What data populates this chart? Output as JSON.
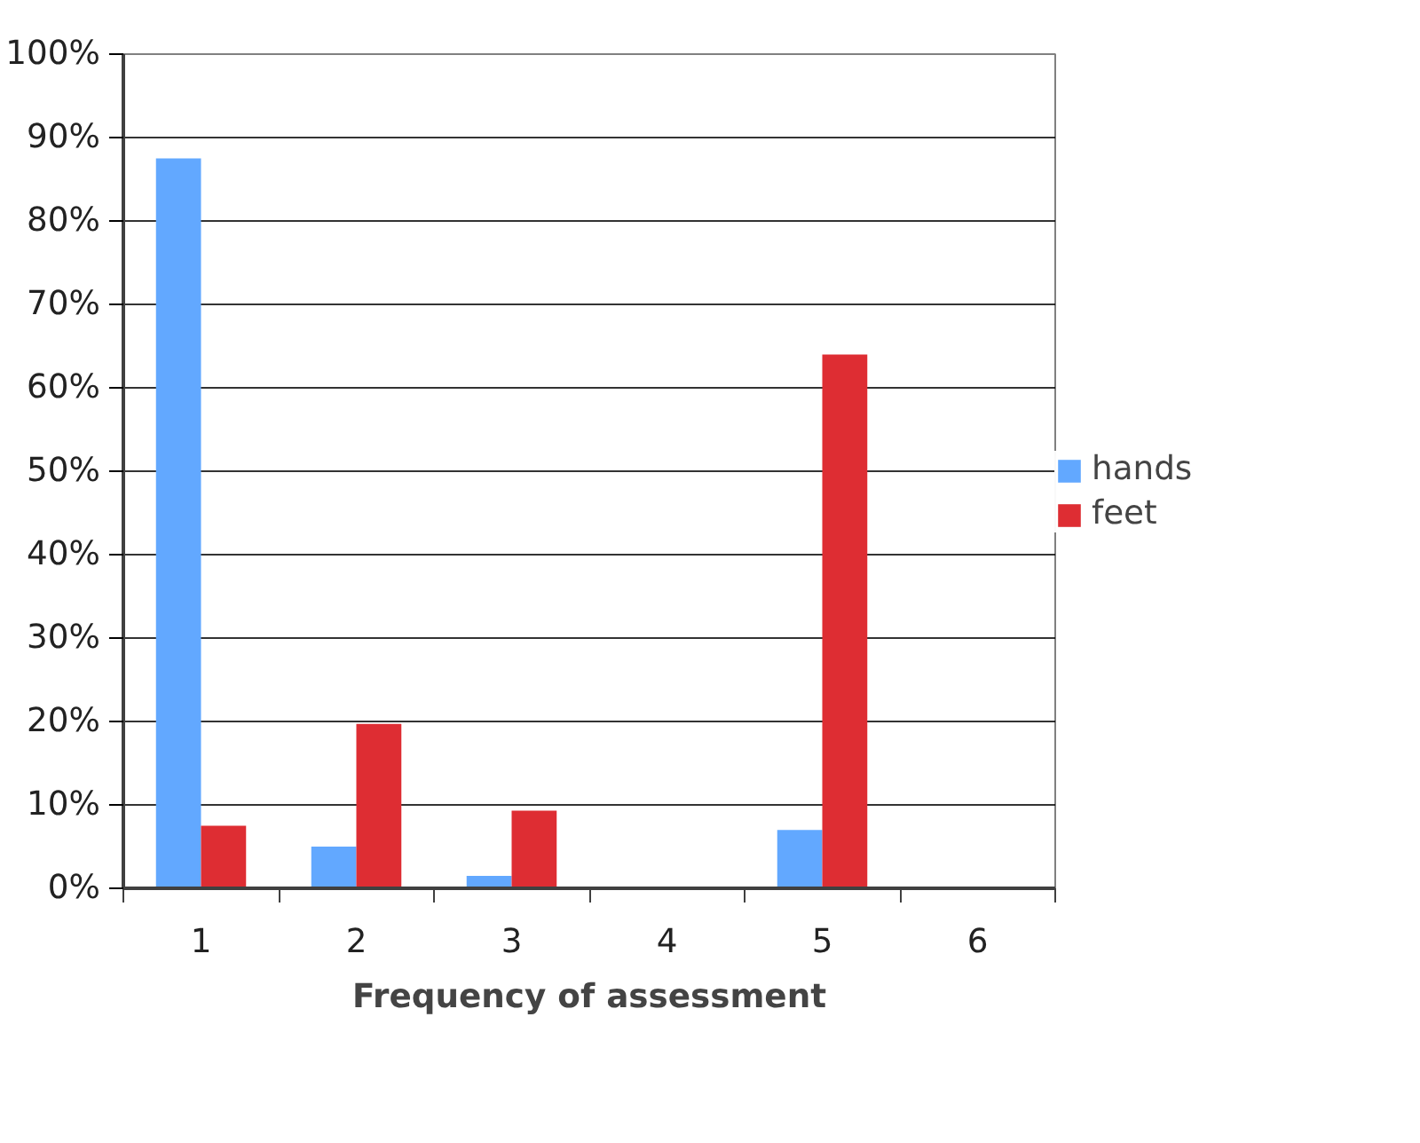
{
  "chart_data": {
    "type": "bar",
    "xlabel": "Frequency of assessment",
    "categories": [
      "1",
      "2",
      "3",
      "4",
      "5",
      "6"
    ],
    "series": [
      {
        "name": "hands",
        "color": "#62a8ff",
        "values": [
          87.5,
          5,
          1.5,
          0,
          7,
          0
        ]
      },
      {
        "name": "feet",
        "color": "#de2d33",
        "values": [
          7.5,
          19.7,
          9.3,
          0,
          64,
          0
        ]
      }
    ],
    "ylim": [
      0,
      100
    ],
    "yticks": [
      {
        "value": 0,
        "label": "0%"
      },
      {
        "value": 10,
        "label": "10%"
      },
      {
        "value": 20,
        "label": "20%"
      },
      {
        "value": 30,
        "label": "30%"
      },
      {
        "value": 40,
        "label": "40%"
      },
      {
        "value": 50,
        "label": "50%"
      },
      {
        "value": 60,
        "label": "60%"
      },
      {
        "value": 70,
        "label": "70%"
      },
      {
        "value": 80,
        "label": "80%"
      },
      {
        "value": 90,
        "label": "90%"
      },
      {
        "value": 100,
        "label": "100%"
      }
    ],
    "grid": "y",
    "legend": "right"
  }
}
